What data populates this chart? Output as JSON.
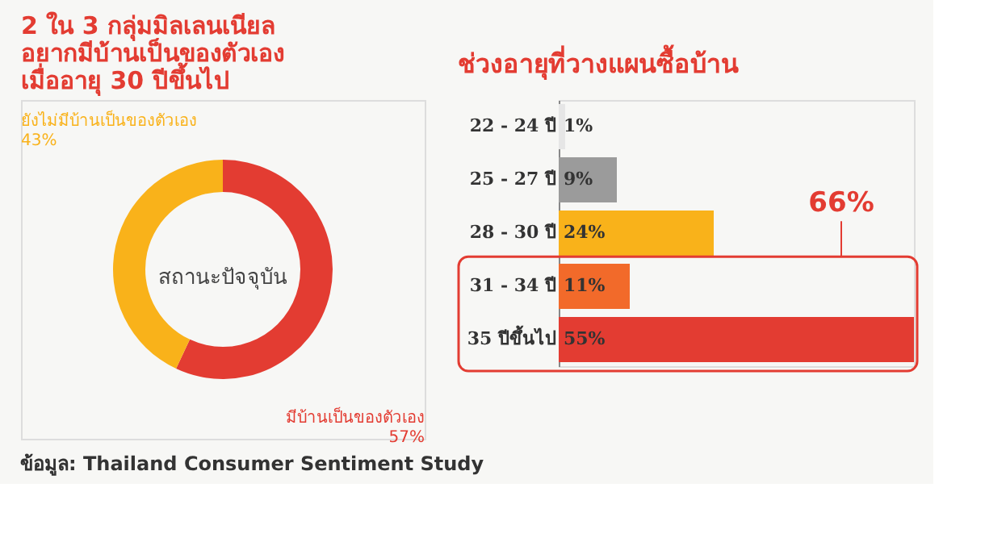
{
  "chart_data": [
    {
      "type": "donut",
      "title": "2 ใน 3 กลุ่มมิลเลนเนียล\nอยากมีบ้านเป็นของตัวเอง\nเมื่ออายุ 30 ปีขึ้นไป",
      "categories": [
        "มีบ้านเป็นของตัวเอง",
        "ยังไม่มีบ้านเป็นของตัวเอง"
      ],
      "values": [
        57,
        43
      ],
      "value_labels": [
        "57%",
        "43%"
      ],
      "colors": [
        "#e33c32",
        "#f9b21a"
      ],
      "legend": false,
      "annotations": [
        "สถานะปัจจุบัน",
        "ข้อมูล: Thailand Consumer Sentiment Study"
      ]
    },
    {
      "type": "bar",
      "orientation": "horizontal",
      "title": "ช่วงอายุที่วางแผนซื้อบ้าน",
      "categories": [
        "22 - 24 ปี",
        "25 - 27 ปี",
        "28 - 30 ปี",
        "31 - 34 ปี",
        "35 ปีขึ้นไป"
      ],
      "values": [
        1,
        9,
        24,
        11,
        55
      ],
      "value_labels": [
        "1%",
        "9%",
        "24%",
        "11%",
        "55%"
      ],
      "colors": [
        "#e6e6e6",
        "#9b9b9b",
        "#f9b21a",
        "#f26a2a",
        "#e33c32"
      ],
      "grid": false,
      "annotations": [
        "66%"
      ]
    }
  ]
}
